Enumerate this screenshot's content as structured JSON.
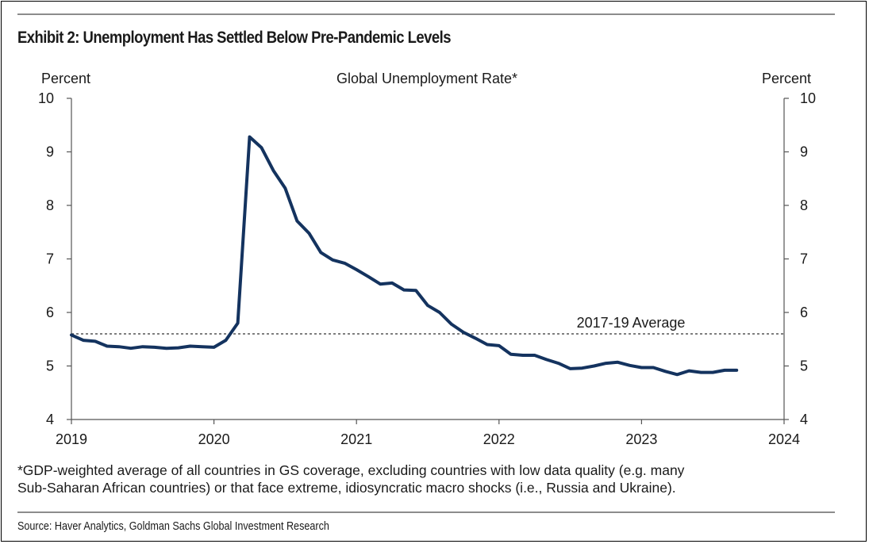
{
  "exhibit_title": "Exhibit 2: Unemployment Has Settled Below Pre-Pandemic Levels",
  "footnote_line1": "*GDP-weighted average of all countries in GS coverage, excluding countries with low data quality (e.g. many",
  "footnote_line2": "Sub-Saharan African countries) or that face extreme, idiosyncratic macro shocks (i.e., Russia and Ukraine).",
  "source": "Source: Haver Analytics, Goldman Sachs Global Investment Research",
  "chart_data": {
    "type": "line",
    "title": "Global Unemployment Rate*",
    "ylabel_left": "Percent",
    "ylabel_right": "Percent",
    "xlabel": "",
    "ylim": [
      4,
      10
    ],
    "xlim": [
      2019,
      2024
    ],
    "y_ticks": [
      4,
      5,
      6,
      7,
      8,
      9,
      10
    ],
    "y_tick_labels": [
      "4",
      "5",
      "6",
      "7",
      "8",
      "9",
      "10"
    ],
    "x_ticks": [
      2019,
      2020,
      2021,
      2022,
      2023,
      2024
    ],
    "x_tick_labels": [
      "2019",
      "2020",
      "2021",
      "2022",
      "2023",
      "2024"
    ],
    "grid": false,
    "line_color": "#14335f",
    "reference_line": {
      "label": "2017-19 Average",
      "value": 5.6
    },
    "series": [
      {
        "x": [
          2019.0,
          2019.083,
          2019.167,
          2019.25,
          2019.333,
          2019.417,
          2019.5,
          2019.583,
          2019.667,
          2019.75,
          2019.833,
          2019.917,
          2020.0,
          2020.083,
          2020.167,
          2020.25,
          2020.333,
          2020.417,
          2020.5,
          2020.583,
          2020.667,
          2020.75,
          2020.833,
          2020.917,
          2021.0,
          2021.083,
          2021.167,
          2021.25,
          2021.333,
          2021.417,
          2021.5,
          2021.583,
          2021.667,
          2021.75,
          2021.833,
          2021.917,
          2022.0,
          2022.083,
          2022.167,
          2022.25,
          2022.333,
          2022.417,
          2022.5,
          2022.583,
          2022.667,
          2022.75,
          2022.833,
          2022.917,
          2023.0,
          2023.083,
          2023.167,
          2023.25,
          2023.333,
          2023.417,
          2023.5,
          2023.583,
          2023.667
        ],
        "values": [
          5.58,
          5.48,
          5.46,
          5.37,
          5.36,
          5.33,
          5.36,
          5.35,
          5.33,
          5.34,
          5.37,
          5.36,
          5.35,
          5.48,
          5.8,
          9.28,
          9.08,
          8.65,
          8.32,
          7.71,
          7.48,
          7.12,
          6.98,
          6.92,
          6.8,
          6.67,
          6.53,
          6.55,
          6.42,
          6.41,
          6.13,
          6.0,
          5.78,
          5.63,
          5.52,
          5.4,
          5.38,
          5.22,
          5.2,
          5.2,
          5.12,
          5.05,
          4.95,
          4.96,
          5.0,
          5.05,
          5.07,
          5.01,
          4.97,
          4.97,
          4.9,
          4.84,
          4.91,
          4.88,
          4.88,
          4.92,
          4.92
        ]
      }
    ]
  }
}
